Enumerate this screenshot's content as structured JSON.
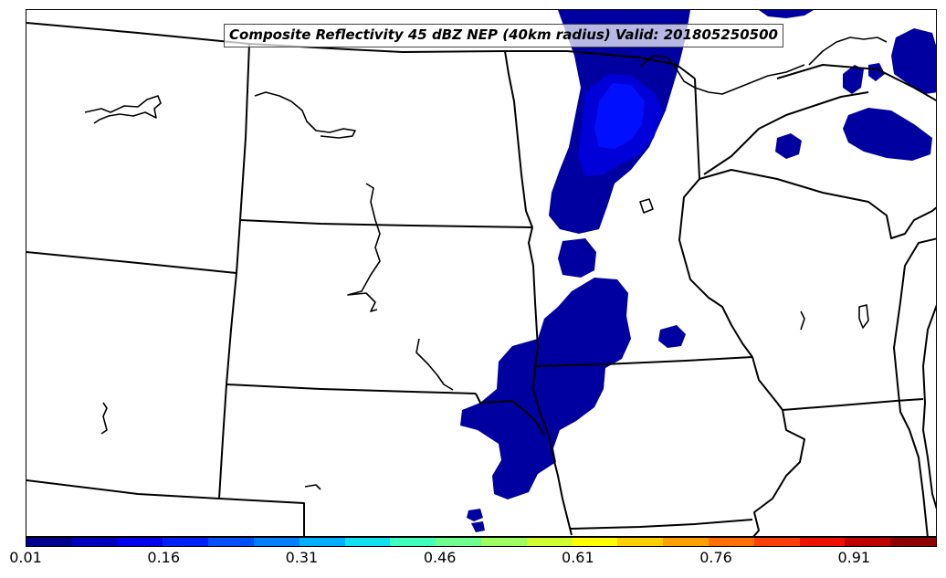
{
  "title": "Composite Reflectivity 45 dBZ NEP (40km radius) Valid: 201805250500",
  "colorbar": {
    "colors": [
      "#00008f",
      "#0000bf",
      "#0000ef",
      "#0020ff",
      "#0050ff",
      "#0080ff",
      "#00b0ff",
      "#10e0ef",
      "#40ffbf",
      "#70ff8f",
      "#a0ff60",
      "#d0ff30",
      "#ffff00",
      "#ffd000",
      "#ffa000",
      "#ff7000",
      "#ff4000",
      "#ef1000",
      "#bf0000",
      "#8f0000"
    ],
    "tick_labels": [
      "0.01",
      "0.16",
      "0.31",
      "0.46",
      "0.61",
      "0.76",
      "0.91"
    ],
    "tick_values": [
      0.01,
      0.16,
      0.31,
      0.46,
      0.61,
      0.76,
      0.91
    ],
    "min": 0.01,
    "max": 1.0
  },
  "map": {
    "fill_colors": {
      "low": "#0000a0",
      "mid": "#0000d8",
      "high": "#0010ff"
    },
    "line_color": "#000000"
  }
}
